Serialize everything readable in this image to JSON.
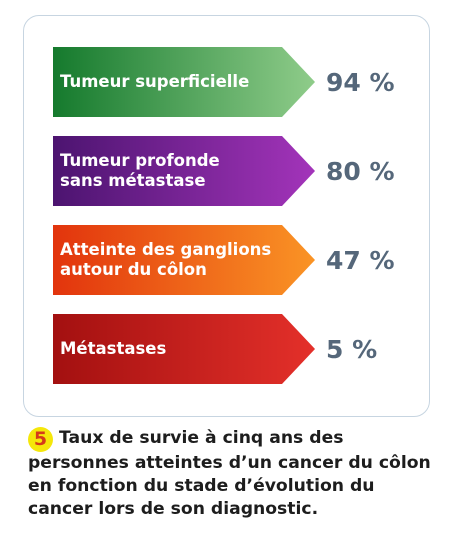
{
  "chart_data": {
    "type": "bar",
    "categories": [
      "Tumeur superficielle",
      "Tumeur profonde sans métastase",
      "Atteinte des ganglions autour du côlon",
      "Métastases"
    ],
    "label_lines": [
      [
        "Tumeur superficielle"
      ],
      [
        "Tumeur profonde",
        "sans métastase"
      ],
      [
        "Atteinte des ganglions",
        "autour du côlon"
      ],
      [
        "Métastases"
      ]
    ],
    "values": [
      94,
      80,
      47,
      5
    ],
    "value_labels": [
      "94 %",
      "80 %",
      "47 %",
      "5 %"
    ],
    "colors": [
      [
        "#157a2d",
        "#8fcc8a"
      ],
      [
        "#4c1470",
        "#a334ba"
      ],
      [
        "#e2340d",
        "#fa9425"
      ],
      [
        "#a31010",
        "#e4302a"
      ]
    ]
  },
  "caption": {
    "figure_number": "5",
    "text": "Taux de survie à cinq ans des personnes atteintes d’un cancer du côlon en fonction du stade d’évolution du cancer lors de son diagnostic."
  }
}
